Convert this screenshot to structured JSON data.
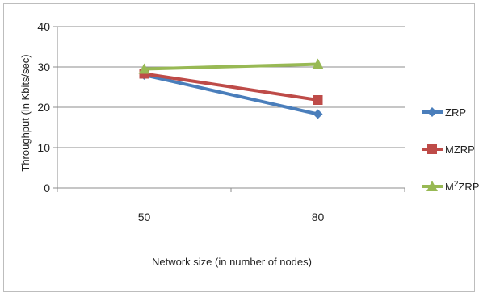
{
  "chart_data": {
    "type": "line",
    "categories": [
      "50",
      "80"
    ],
    "series": [
      {
        "name": "ZRP",
        "values": [
          28.0,
          18.3
        ],
        "color": "#4a7ebb",
        "marker": "diamond"
      },
      {
        "name": "MZRP",
        "values": [
          28.3,
          21.8
        ],
        "color": "#be4b48",
        "marker": "square"
      },
      {
        "name": "M²ZRP",
        "values": [
          29.5,
          30.7
        ],
        "color": "#98b954",
        "marker": "triangle"
      }
    ],
    "xlabel": "Network size (in number of nodes)",
    "ylabel": "Throughput (in Kbits/sec)",
    "ylim": [
      0,
      40
    ],
    "yticks": [
      "0",
      "10",
      "20",
      "30",
      "40"
    ],
    "grid": true,
    "legend_position": "right"
  }
}
